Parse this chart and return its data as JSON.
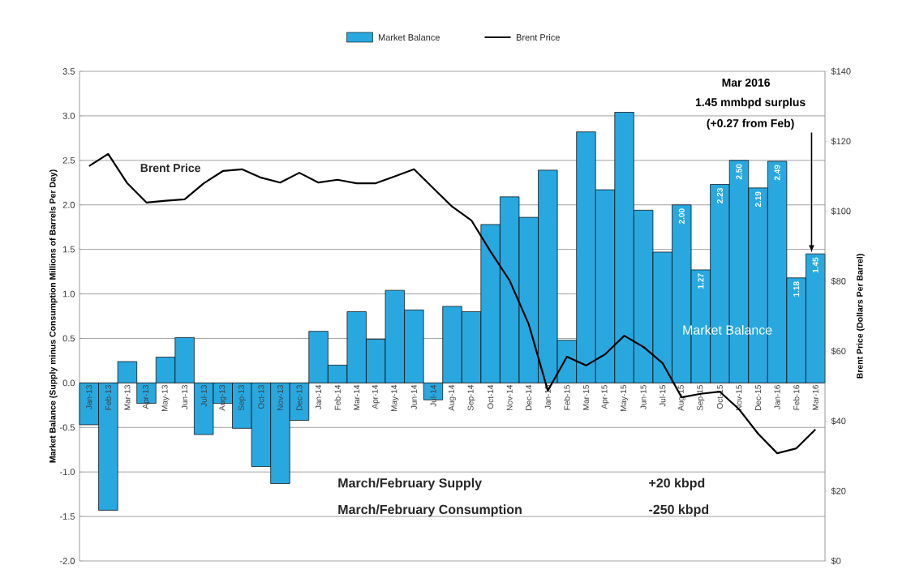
{
  "chart_data": {
    "type": "bar",
    "categories": [
      "Jan-13",
      "Feb-13",
      "Mar-13",
      "Apr-13",
      "May-13",
      "Jun-13",
      "Jul-13",
      "Aug-13",
      "Sep-13",
      "Oct-13",
      "Nov-13",
      "Dec-13",
      "Jan-14",
      "Feb-14",
      "Mar-14",
      "Apr-14",
      "May-14",
      "Jun-14",
      "Jul-14",
      "Aug-14",
      "Sep-14",
      "Oct-14",
      "Nov-14",
      "Dec-14",
      "Jan-15",
      "Feb-15",
      "Mar-15",
      "Apr-15",
      "May-15",
      "Jun-15",
      "Jul-15",
      "Aug-15",
      "Sep-15",
      "Oct-15",
      "Nov-15",
      "Dec-15",
      "Jan-16",
      "Feb-16",
      "Mar-16"
    ],
    "series": [
      {
        "name": "Market Balance",
        "color": "#29a8e0",
        "values": [
          -0.47,
          -1.43,
          0.24,
          -0.23,
          0.29,
          0.51,
          -0.58,
          -0.23,
          -0.51,
          -0.94,
          -1.13,
          -0.42,
          0.58,
          0.2,
          0.8,
          0.49,
          1.04,
          0.82,
          -0.19,
          0.86,
          0.8,
          1.78,
          2.09,
          1.86,
          2.39,
          0.48,
          2.82,
          2.17,
          3.04,
          1.94,
          1.47,
          2.0,
          1.27,
          2.23,
          2.5,
          2.19,
          2.49,
          1.18,
          1.45
        ],
        "value_labels": [
          null,
          null,
          null,
          null,
          null,
          null,
          null,
          null,
          null,
          null,
          null,
          null,
          null,
          null,
          null,
          null,
          null,
          null,
          null,
          null,
          null,
          null,
          null,
          null,
          null,
          null,
          null,
          null,
          null,
          null,
          null,
          "2.00",
          "1.27",
          "2.23",
          "2.50",
          "2.19",
          "2.49",
          "1.18",
          "1.45"
        ]
      },
      {
        "name": "Brent Price",
        "type": "line",
        "axis": "y2",
        "color": "#000000",
        "values": [
          112.9,
          116.4,
          108,
          102.5,
          103,
          103.4,
          108,
          111.5,
          112,
          109.6,
          108.2,
          111,
          108.2,
          109,
          108,
          108,
          110,
          112,
          106.6,
          101.3,
          97.4,
          88.5,
          80.2,
          67.7,
          48.7,
          58.4,
          55.9,
          59.1,
          64.4,
          61.2,
          56.6,
          46.8,
          47.8,
          48.4,
          43.4,
          36.4,
          30.8,
          32.2,
          37.6
        ]
      }
    ],
    "ylabel": "Market Balance (Supply minus Consumption  Millions of Barrels Per Day)",
    "y2label": "Brent Price (Dollars  Per Barrel)",
    "ylim": [
      -2.0,
      3.5
    ],
    "yticks": [
      {
        "value": -2.0,
        "label": "-2.0"
      },
      {
        "value": -1.5,
        "label": "-1.5"
      },
      {
        "value": -1.0,
        "label": "-1.0"
      },
      {
        "value": -0.5,
        "label": "-0.5"
      },
      {
        "value": 0,
        "label": "0.0"
      },
      {
        "value": 0.5,
        "label": "0.5"
      },
      {
        "value": 1.0,
        "label": "1.0"
      },
      {
        "value": 1.5,
        "label": "1.5"
      },
      {
        "value": 2.0,
        "label": "2.0"
      },
      {
        "value": 2.5,
        "label": "2.5"
      },
      {
        "value": 3.0,
        "label": "3.0"
      },
      {
        "value": 3.5,
        "label": "3.5"
      }
    ],
    "y2lim": [
      0,
      140
    ],
    "y2ticks": [
      {
        "value": 0,
        "label": "$0"
      },
      {
        "value": 20,
        "label": "$20"
      },
      {
        "value": 40,
        "label": "$40"
      },
      {
        "value": 60,
        "label": "$60"
      },
      {
        "value": 80,
        "label": "$80"
      },
      {
        "value": 100,
        "label": "$100"
      },
      {
        "value": 120,
        "label": "$120"
      },
      {
        "value": 140,
        "label": "$140"
      }
    ],
    "grid": "y",
    "legend": "top",
    "annotations": [
      "Mar 2016",
      "1.45 mmbpd surplus",
      "(+0.27 from Feb)",
      "Brent Price",
      "Market Balance",
      "March/February Supply",
      "+20  kbpd",
      "March/February Consumption",
      "-250 kbpd"
    ]
  }
}
